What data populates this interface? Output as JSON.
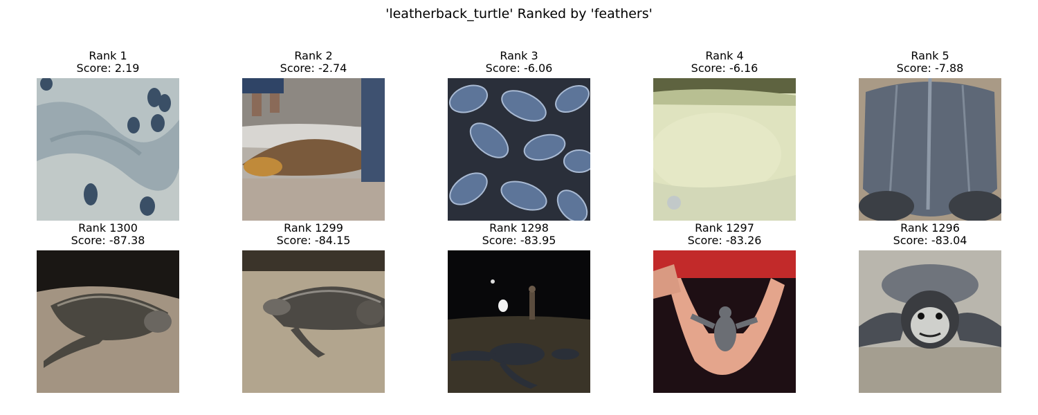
{
  "figure": {
    "title": "'leatherback_turtle' Ranked by 'feathers'"
  },
  "top_row": [
    {
      "rank": "Rank 1",
      "score": "Score: 2.19",
      "image": "hatchlings-on-sand"
    },
    {
      "rank": "Rank 2",
      "score": "Score: -2.74",
      "image": "turtle-in-surf-with-legs"
    },
    {
      "rank": "Rank 3",
      "score": "Score: -6.06",
      "image": "pile-of-hatchlings"
    },
    {
      "rank": "Rank 4",
      "score": "Score: -6.16",
      "image": "pale-green-sand"
    },
    {
      "rank": "Rank 5",
      "score": "Score: -7.88",
      "image": "adult-carapace-closeup"
    }
  ],
  "bottom_row": [
    {
      "rank": "Rank 1300",
      "score": "Score: -87.38",
      "image": "adult-nesting-on-sand"
    },
    {
      "rank": "Rank 1299",
      "score": "Score: -84.15",
      "image": "adult-digging-in-sand"
    },
    {
      "rank": "Rank 1298",
      "score": "Score: -83.95",
      "image": "night-beach-with-person"
    },
    {
      "rank": "Rank 1297",
      "score": "Score: -83.26",
      "image": "hatchling-in-hands"
    },
    {
      "rank": "Rank 1296",
      "score": "Score: -83.04",
      "image": "hatchling-face-closeup"
    }
  ]
}
